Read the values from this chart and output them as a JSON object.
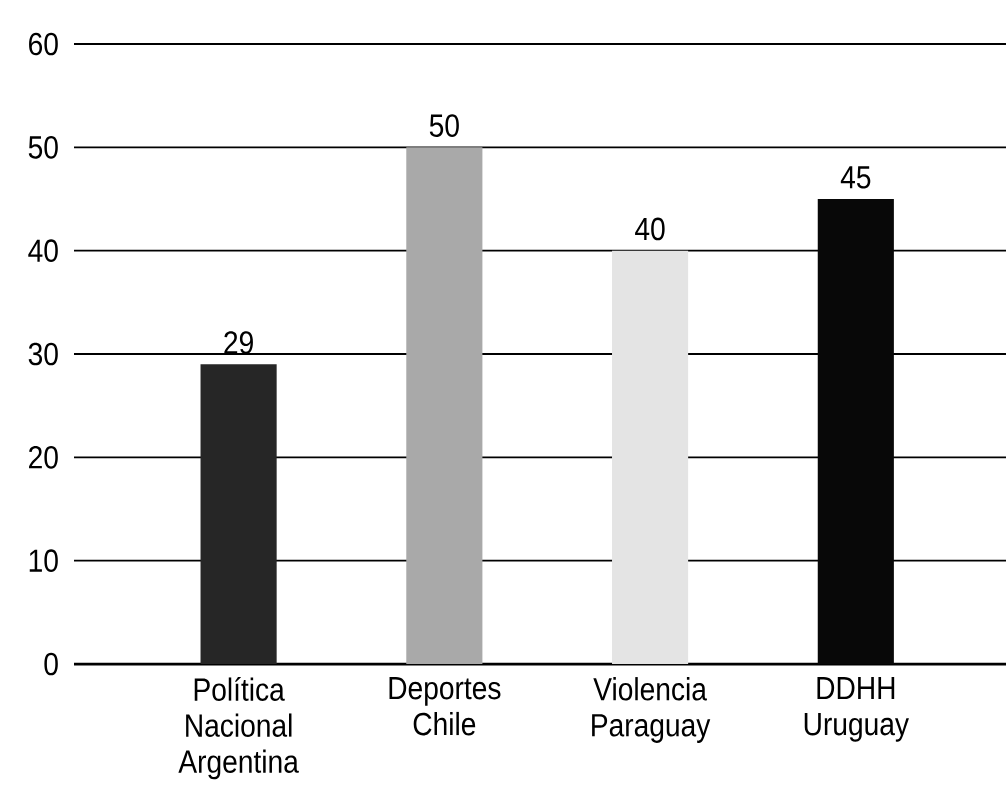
{
  "chart_data": {
    "type": "bar",
    "categories": [
      "Política Nacional Argentina",
      "Deportes Chile",
      "Violencia Paraguay",
      "DDHH Uruguay"
    ],
    "values": [
      29,
      50,
      40,
      45
    ],
    "colors": [
      "#262626",
      "#a9a9a9",
      "#e4e4e4",
      "#080808"
    ],
    "ylim": [
      0,
      60
    ],
    "yticks": [
      0,
      10,
      20,
      30,
      40,
      50,
      60
    ],
    "grid": "y",
    "data_labels": true
  }
}
